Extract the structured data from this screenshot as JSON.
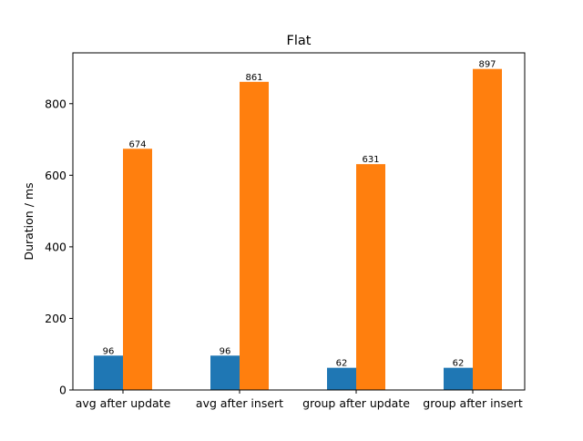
{
  "chart_data": {
    "type": "bar",
    "title": "Flat",
    "xlabel": "",
    "ylabel": "Duration / ms",
    "categories": [
      "avg after update",
      "avg after insert",
      "group after update",
      "group after insert"
    ],
    "series": [
      {
        "values": [
          96,
          96,
          62,
          62
        ],
        "color": "#1f77b4"
      },
      {
        "values": [
          674,
          861,
          631,
          897
        ],
        "color": "#ff7f0e"
      }
    ],
    "ylim": [
      0,
      942
    ],
    "yticks": [
      0,
      200,
      400,
      600,
      800
    ],
    "grid": false,
    "legend": "none",
    "data_labels": true
  }
}
